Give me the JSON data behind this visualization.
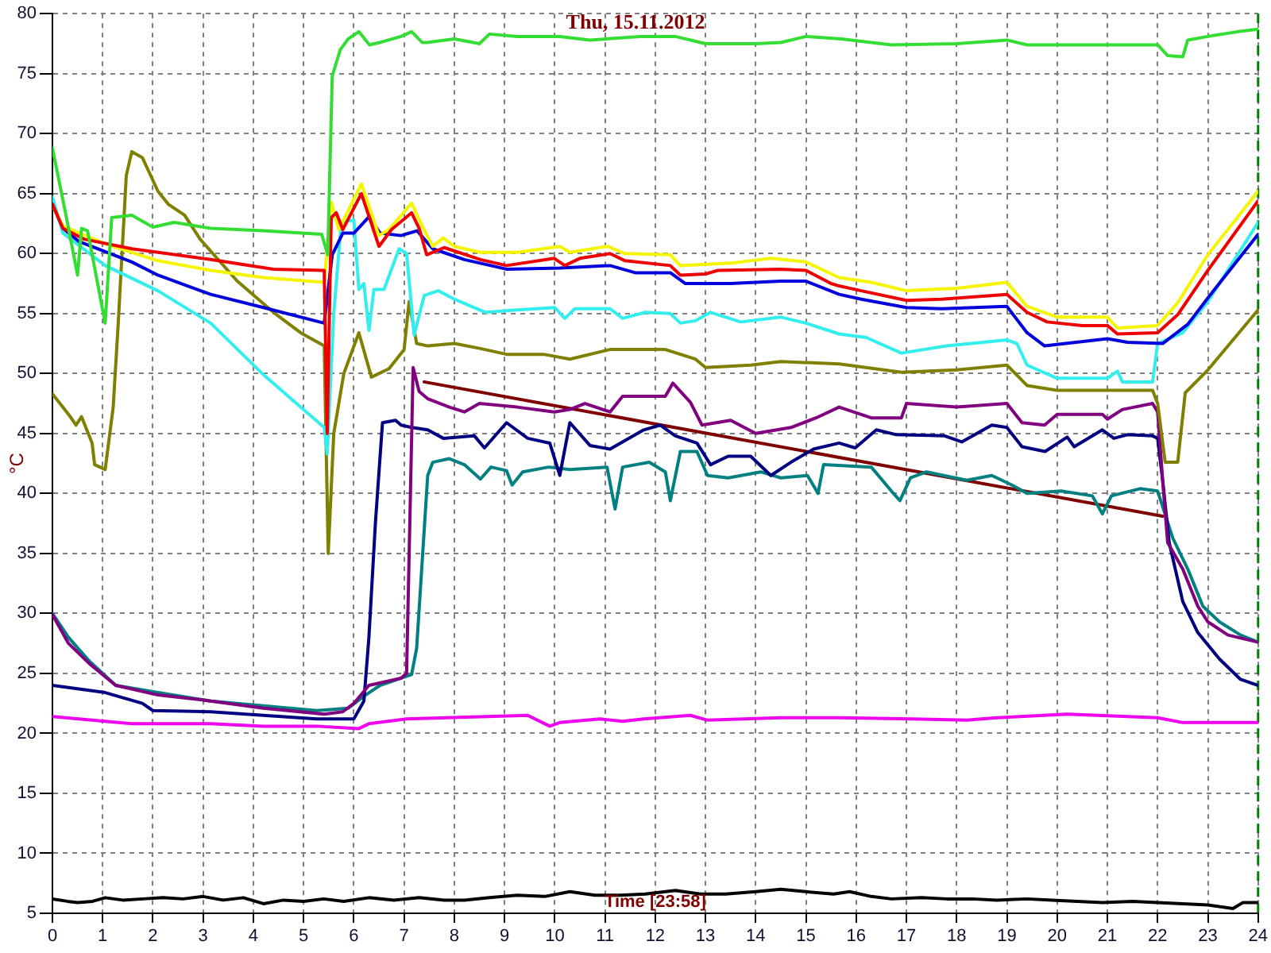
{
  "chart_data": {
    "type": "line",
    "title": "Thu, 15.11.2012",
    "xlabel": "Time [23:58]",
    "ylabel": "°C",
    "xlim": [
      0,
      24
    ],
    "xticks": [
      0,
      1,
      2,
      3,
      4,
      5,
      6,
      7,
      8,
      9,
      10,
      11,
      12,
      13,
      14,
      15,
      16,
      17,
      18,
      19,
      20,
      21,
      22,
      23,
      24
    ],
    "ylim": [
      5,
      80
    ],
    "yticks": [
      5,
      10,
      15,
      20,
      25,
      30,
      35,
      40,
      45,
      50,
      55,
      60,
      65,
      70,
      75,
      80
    ],
    "grid": true,
    "marker": "none",
    "line_style": "solid",
    "ref_lines": [
      {
        "axis": "x",
        "value": 24,
        "color": "#008000",
        "line_style": "dashed"
      }
    ],
    "series": [
      {
        "color": "#33dd33",
        "x": [
          0,
          0.26,
          0.5,
          0.58,
          0.7,
          1.05,
          1.18,
          1.58,
          2.0,
          2.42,
          3.15,
          4.2,
          5.36,
          5.48,
          5.57,
          5.73,
          5.89,
          6.1,
          6.31,
          6.52,
          6.94,
          7.15,
          7.36,
          7.46,
          8.0,
          8.5,
          8.7,
          9.25,
          10.1,
          10.7,
          11.7,
          12.4,
          13.0,
          14.0,
          14.5,
          15.0,
          15.7,
          16.7,
          18.0,
          19.0,
          19.4,
          21.0,
          22.0,
          22.2,
          22.5,
          22.6,
          23.0,
          23.6,
          24
        ],
        "values": [
          68.8,
          63.4,
          58.2,
          62.1,
          61.9,
          54.2,
          63,
          63.2,
          62.2,
          62.6,
          62.1,
          61.9,
          61.6,
          59.9,
          74.8,
          77,
          77.9,
          78.5,
          77.4,
          77.6,
          78.1,
          78.5,
          77.6,
          77.6,
          77.9,
          77.5,
          78.3,
          78.1,
          78.1,
          77.8,
          78.1,
          78.1,
          77.5,
          77.5,
          77.6,
          78.1,
          77.9,
          77.4,
          77.5,
          77.8,
          77.4,
          77.4,
          77.4,
          76.5,
          76.4,
          77.8,
          78.1,
          78.5,
          78.7
        ]
      },
      {
        "color": "#ee0000",
        "x": [
          0,
          0.21,
          0.63,
          1.58,
          3.15,
          4.4,
          5.41,
          5.47,
          5.55,
          5.65,
          5.78,
          6.15,
          6.5,
          6.75,
          7.15,
          7.3,
          7.45,
          7.8,
          8.52,
          9.04,
          9.99,
          10.2,
          10.5,
          11.1,
          11.4,
          12.3,
          12.5,
          13.0,
          13.25,
          14.5,
          15.0,
          15.5,
          15.66,
          16.1,
          17.0,
          17.7,
          19.0,
          19.4,
          19.8,
          20.5,
          21.0,
          21.2,
          22.0,
          22.4,
          23.0,
          24
        ],
        "values": [
          64.1,
          62.1,
          61.2,
          60.4,
          59.5,
          58.7,
          58.6,
          45,
          63,
          63.4,
          62,
          65,
          60.6,
          62,
          63.4,
          62.1,
          59.9,
          60.5,
          59.5,
          59,
          59.6,
          59,
          59.6,
          60,
          59.4,
          59,
          58.2,
          58.3,
          58.6,
          58.7,
          58.6,
          57.5,
          57.3,
          56.9,
          56.1,
          56.2,
          56.6,
          55.1,
          54.3,
          54,
          54,
          53.3,
          53.4,
          54.9,
          58.6,
          64.4
        ]
      },
      {
        "color": "#f5f500",
        "x": [
          0,
          0.21,
          1.05,
          2.1,
          3.15,
          4.2,
          5.41,
          5.47,
          5.55,
          5.7,
          6.15,
          6.5,
          6.7,
          7.15,
          7.36,
          7.57,
          7.78,
          8.0,
          8.52,
          9.25,
          10.1,
          10.3,
          11.05,
          11.4,
          12.3,
          12.5,
          13.5,
          14.3,
          15.0,
          15.66,
          16.3,
          17.0,
          18.0,
          19.0,
          19.4,
          20.0,
          21.0,
          21.2,
          22.0,
          22.4,
          23.0,
          24
        ],
        "values": [
          64,
          62.3,
          60.8,
          59.4,
          58.6,
          58,
          57.6,
          60.4,
          64.3,
          62,
          65.8,
          61.5,
          62,
          64.2,
          62.3,
          60.6,
          61.3,
          60.6,
          60.1,
          60.1,
          60.6,
          60.1,
          60.6,
          60,
          59.9,
          59,
          59.2,
          59.6,
          59.3,
          58,
          57.6,
          56.9,
          57.1,
          57.6,
          55.6,
          54.7,
          54.7,
          53.8,
          54,
          55.9,
          59.9,
          65.2
        ]
      },
      {
        "color": "#0000dd",
        "x": [
          0,
          0.21,
          0.53,
          1.58,
          2.1,
          3.15,
          4.2,
          5.41,
          5.57,
          5.78,
          6.0,
          6.31,
          6.52,
          6.94,
          7.26,
          7.57,
          8.2,
          9.04,
          10.1,
          11.1,
          11.6,
          12.3,
          12.6,
          13.5,
          14.5,
          15.0,
          15.66,
          16.1,
          17.0,
          17.7,
          19.0,
          19.4,
          19.75,
          21.0,
          21.4,
          22.1,
          22.6,
          23.0,
          24
        ],
        "values": [
          64.1,
          62.1,
          61,
          59.3,
          58.2,
          56.6,
          55.5,
          54.2,
          59.9,
          61.7,
          61.7,
          63.1,
          61.7,
          61.5,
          61.9,
          60.4,
          59.5,
          58.7,
          58.8,
          59,
          58.4,
          58.4,
          57.5,
          57.5,
          57.7,
          57.7,
          56.6,
          56.2,
          55.5,
          55.4,
          55.6,
          53.4,
          52.3,
          52.9,
          52.6,
          52.5,
          54.1,
          56.3,
          61.6
        ]
      },
      {
        "color": "#33eeee",
        "x": [
          0,
          0.21,
          1.05,
          2.1,
          3.15,
          4.2,
          5.41,
          5.47,
          5.6,
          5.75,
          6.0,
          6.1,
          6.2,
          6.3,
          6.4,
          6.6,
          6.9,
          7.05,
          7.2,
          7.4,
          7.68,
          8.0,
          8.62,
          9.25,
          10.0,
          10.2,
          10.4,
          11.1,
          11.35,
          11.8,
          12.3,
          12.5,
          12.8,
          13.1,
          13.7,
          14.5,
          15.0,
          15.66,
          16.2,
          16.9,
          17.8,
          19.0,
          19.2,
          19.4,
          20.0,
          21.0,
          21.2,
          21.3,
          21.9,
          22.0,
          22.5,
          23.0,
          24
        ],
        "values": [
          64.7,
          61.7,
          59,
          56.9,
          54.2,
          49.9,
          45.5,
          43.3,
          55,
          62.6,
          62.8,
          57,
          57.5,
          53.6,
          57,
          57,
          60.4,
          60,
          53.2,
          56.5,
          56.9,
          56.2,
          55.1,
          55.3,
          55.5,
          54.6,
          55.4,
          55.4,
          54.6,
          55.1,
          55,
          54.2,
          54.4,
          55.1,
          54.3,
          54.7,
          54.2,
          53.3,
          53,
          51.7,
          52.3,
          52.8,
          52.5,
          50.7,
          49.6,
          49.6,
          50.2,
          49.3,
          49.3,
          52.5,
          53.4,
          56,
          62.6
        ]
      },
      {
        "color": "#808000",
        "x": [
          0,
          0.32,
          0.47,
          0.58,
          0.79,
          0.84,
          1.05,
          1.21,
          1.31,
          1.47,
          1.58,
          1.79,
          2.1,
          2.31,
          2.63,
          2.94,
          3.68,
          4.4,
          4.94,
          5.41,
          5.49,
          5.6,
          5.8,
          6.1,
          6.35,
          6.7,
          7.0,
          7.1,
          7.25,
          7.47,
          8.0,
          8.5,
          9.04,
          9.78,
          10.3,
          11.1,
          12.2,
          12.8,
          13.0,
          13.9,
          14.5,
          15.66,
          16.9,
          18.0,
          19.0,
          19.4,
          20.0,
          21.0,
          21.9,
          22.0,
          22.15,
          22.4,
          22.55,
          23.0,
          24
        ],
        "values": [
          48.3,
          46.6,
          45.7,
          46.4,
          44.2,
          42.4,
          42,
          47.2,
          54.2,
          66.5,
          68.5,
          68,
          65.2,
          64.1,
          63.2,
          61.2,
          57.7,
          55.1,
          53.4,
          52.3,
          35,
          45,
          50,
          53.4,
          49.7,
          50.4,
          52,
          56,
          52.5,
          52.3,
          52.5,
          52.1,
          51.6,
          51.6,
          51.2,
          52,
          52,
          51.2,
          50.5,
          50.7,
          51,
          50.8,
          50.1,
          50.3,
          50.7,
          49,
          48.6,
          48.6,
          48.6,
          47.5,
          42.6,
          42.6,
          48.4,
          50.3,
          55.3
        ]
      },
      {
        "color": "#800080",
        "x": [
          0,
          0.32,
          0.74,
          1.26,
          2.1,
          3.15,
          4.2,
          5.41,
          5.78,
          6.0,
          6.3,
          6.94,
          7.05,
          7.18,
          7.3,
          7.47,
          7.9,
          8.2,
          8.5,
          9.25,
          9.99,
          10.3,
          10.6,
          11.1,
          11.35,
          12.2,
          12.35,
          12.7,
          12.93,
          13.5,
          14.0,
          14.7,
          15.2,
          15.66,
          16.3,
          16.9,
          17.0,
          18.0,
          19.0,
          19.3,
          19.75,
          20.0,
          20.9,
          21.0,
          21.3,
          21.9,
          22.0,
          22.1,
          22.2,
          22.5,
          22.8,
          23.0,
          23.4,
          24
        ],
        "values": [
          29.9,
          27.5,
          25.8,
          24,
          23.2,
          22.7,
          22.1,
          21.6,
          21.8,
          22.5,
          24,
          24.6,
          25,
          50.5,
          48.5,
          47.9,
          47.2,
          46.8,
          47.5,
          47.2,
          46.8,
          47,
          47.5,
          46.8,
          48.1,
          48.1,
          49.2,
          47.6,
          45.7,
          46.1,
          45,
          45.5,
          46.3,
          47.2,
          46.3,
          46.3,
          47.5,
          47.2,
          47.5,
          45.9,
          45.7,
          46.6,
          46.6,
          46.2,
          47,
          47.5,
          46.8,
          41.1,
          35.9,
          33.7,
          30.6,
          29.3,
          28.2,
          27.6
        ]
      },
      {
        "color": "#000080",
        "x": [
          0,
          1.05,
          1.79,
          2.0,
          3.15,
          4.2,
          5.26,
          6.0,
          6.2,
          6.3,
          6.43,
          6.57,
          6.83,
          6.94,
          7.15,
          7.47,
          7.78,
          8.4,
          8.6,
          9.04,
          9.46,
          9.9,
          10.1,
          10.3,
          10.7,
          11.1,
          11.77,
          12.1,
          12.4,
          12.83,
          13.1,
          13.45,
          13.9,
          14.3,
          14.7,
          15.15,
          15.66,
          15.98,
          16.4,
          16.8,
          17.76,
          18.1,
          18.7,
          19.0,
          19.3,
          19.76,
          20.2,
          20.34,
          20.9,
          21.13,
          21.4,
          21.9,
          22.0,
          22.1,
          22.23,
          22.5,
          22.8,
          23.23,
          23.65,
          24
        ],
        "values": [
          24,
          23.4,
          22.5,
          21.9,
          21.8,
          21.5,
          21.2,
          21.2,
          22.7,
          28,
          37.6,
          45.9,
          46.1,
          45.7,
          45.5,
          45.3,
          44.6,
          44.8,
          43.8,
          45.9,
          44.6,
          44.2,
          41.5,
          45.9,
          44,
          43.7,
          45.3,
          45.7,
          44.8,
          44.2,
          42.4,
          43.1,
          43.1,
          41.5,
          42.6,
          43.7,
          44.2,
          43.8,
          45.3,
          44.9,
          44.8,
          44.3,
          45.7,
          45.5,
          43.9,
          43.5,
          44.7,
          43.9,
          45.3,
          44.6,
          44.9,
          44.8,
          44.6,
          41.1,
          35.9,
          31,
          28.4,
          26.2,
          24.5,
          24
        ]
      },
      {
        "color": "#008080",
        "x": [
          0,
          0.32,
          0.74,
          1.26,
          2.1,
          3.15,
          4.2,
          5.26,
          5.89,
          6.2,
          6.52,
          7.15,
          7.25,
          7.47,
          7.57,
          7.9,
          8.2,
          8.52,
          8.73,
          9.04,
          9.15,
          9.36,
          9.88,
          10.3,
          11.04,
          11.2,
          11.35,
          11.88,
          12.2,
          12.3,
          12.5,
          12.83,
          13.04,
          13.45,
          14.1,
          14.5,
          15.03,
          15.24,
          15.35,
          16.3,
          16.7,
          16.87,
          17.08,
          17.4,
          18.2,
          18.7,
          19.1,
          19.4,
          20.08,
          20.7,
          20.9,
          21.08,
          21.65,
          22.0,
          22.1,
          22.3,
          22.6,
          22.9,
          23.23,
          23.65,
          24
        ],
        "values": [
          30,
          28,
          26,
          24,
          23.4,
          22.7,
          22.3,
          21.9,
          22.1,
          23.1,
          24,
          24.9,
          27.1,
          41.5,
          42.6,
          42.9,
          42.4,
          41.2,
          42.2,
          41.9,
          40.7,
          41.8,
          42.2,
          42,
          42.2,
          38.7,
          42.2,
          42.6,
          41.8,
          39.4,
          43.5,
          43.5,
          41.5,
          41.3,
          41.8,
          41.3,
          41.5,
          40,
          42.4,
          42.2,
          40.2,
          39.4,
          41.3,
          41.8,
          41.1,
          41.5,
          40.7,
          40,
          40.2,
          39.8,
          38.3,
          39.8,
          40.4,
          40.2,
          38.9,
          36.3,
          33.7,
          30.6,
          29.3,
          28.2,
          27.6
        ]
      },
      {
        "color": "#ee00ee",
        "x": [
          0,
          1.05,
          1.58,
          3.15,
          4.2,
          5.26,
          6.1,
          6.3,
          7.04,
          9.46,
          9.9,
          10.1,
          10.9,
          11.35,
          11.77,
          12.7,
          13.04,
          14.5,
          15.66,
          17.1,
          18.2,
          18.8,
          20.2,
          22,
          22.5,
          24
        ],
        "values": [
          21.4,
          21,
          20.8,
          20.8,
          20.6,
          20.6,
          20.4,
          20.8,
          21.2,
          21.5,
          20.6,
          20.9,
          21.2,
          21,
          21.2,
          21.5,
          21.1,
          21.3,
          21.3,
          21.2,
          21.1,
          21.3,
          21.6,
          21.3,
          20.9,
          20.9
        ]
      },
      {
        "color": "#000000",
        "x": [
          0,
          0.3,
          0.5,
          0.8,
          1.05,
          1.4,
          1.8,
          2.2,
          2.6,
          3.0,
          3.4,
          3.8,
          4.2,
          4.6,
          5.0,
          5.4,
          5.8,
          6.3,
          6.8,
          7.3,
          7.8,
          8.2,
          8.7,
          9.25,
          9.8,
          10.3,
          10.8,
          11.3,
          11.8,
          12.4,
          12.9,
          13.4,
          14.0,
          14.5,
          15.0,
          15.55,
          15.87,
          16.3,
          16.7,
          17.3,
          17.8,
          18.3,
          18.8,
          19.4,
          19.9,
          20.4,
          20.9,
          21.5,
          22.0,
          22.5,
          23.0,
          23.5,
          23.7,
          24
        ],
        "values": [
          6.2,
          6,
          5.9,
          6,
          6.3,
          6.1,
          6.2,
          6.3,
          6.2,
          6.4,
          6.1,
          6.3,
          5.8,
          6.1,
          6,
          6.2,
          6,
          6.3,
          6.1,
          6.3,
          6.1,
          6.1,
          6.3,
          6.5,
          6.4,
          6.8,
          6.5,
          6.5,
          6.6,
          6.9,
          6.6,
          6.6,
          6.8,
          7,
          6.8,
          6.6,
          6.8,
          6.4,
          6.2,
          6.3,
          6.2,
          6.2,
          6.1,
          6.2,
          6.1,
          6,
          5.9,
          6,
          5.9,
          5.8,
          5.7,
          5.4,
          5.9,
          5.9
        ]
      },
      {
        "type": "line",
        "color": "#800000",
        "x": [
          7.4,
          22.1
        ],
        "values": [
          49.3,
          38.1
        ]
      }
    ]
  }
}
